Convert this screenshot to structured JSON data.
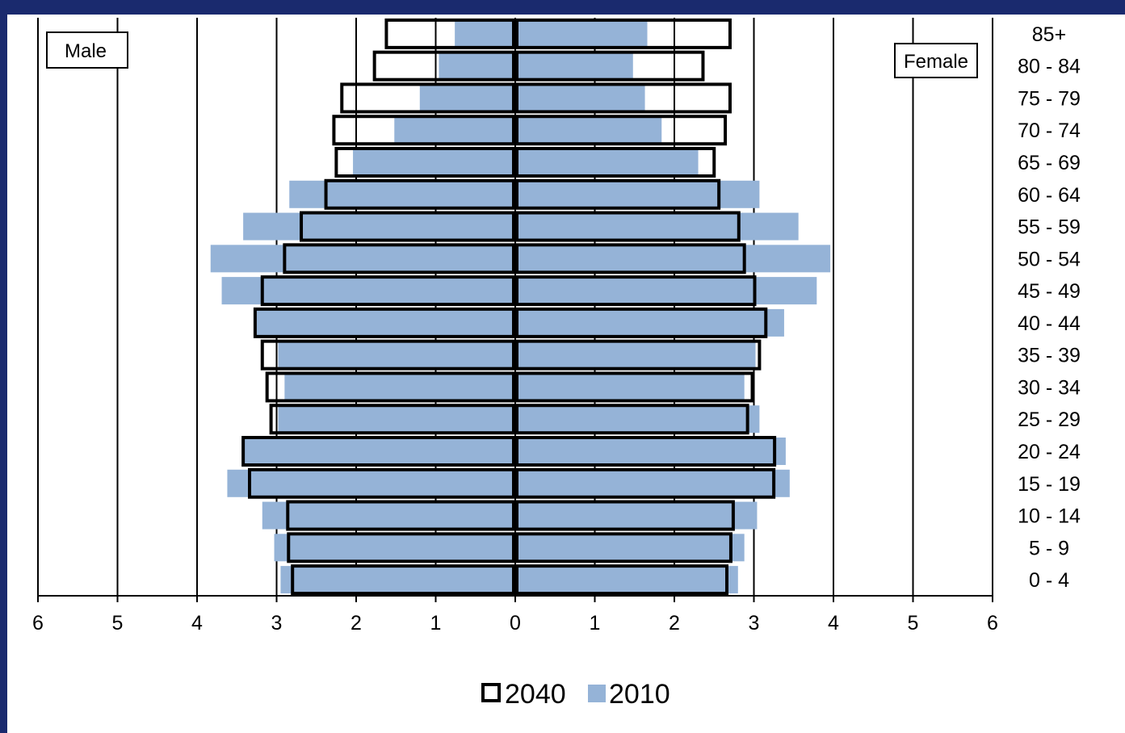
{
  "colors": {
    "frame": "#1a2a6e",
    "bar_2010": "#95b3d7",
    "outline_2040": "#000000",
    "background": "#ffffff"
  },
  "chart_data": {
    "type": "bar",
    "orientation": "horizontal-population-pyramid",
    "title": "",
    "categories": [
      "85+",
      "80 - 84",
      "75 - 79",
      "70 - 74",
      "65 - 69",
      "60 - 64",
      "55 - 59",
      "50 - 54",
      "45 - 49",
      "40 - 44",
      "35 - 39",
      "30 - 34",
      "25 - 29",
      "20 - 24",
      "15 - 19",
      "10 - 14",
      "5 - 9",
      "0 - 4"
    ],
    "side_labels": {
      "left": "Male",
      "right": "Female"
    },
    "x_ticks": [
      "6",
      "5",
      "4",
      "3",
      "2",
      "1",
      "0",
      "1",
      "2",
      "3",
      "4",
      "5",
      "6"
    ],
    "xlim": [
      -6,
      6
    ],
    "grid": "vertical",
    "legend_position": "bottom",
    "legend": [
      "2040",
      "2010"
    ],
    "series": [
      {
        "name": "2040",
        "style": "outline",
        "male": [
          1.62,
          1.77,
          2.18,
          2.28,
          2.25,
          2.38,
          2.69,
          2.9,
          3.18,
          3.27,
          3.18,
          3.12,
          3.07,
          3.42,
          3.34,
          2.86,
          2.85,
          2.8
        ],
        "female": [
          2.7,
          2.36,
          2.7,
          2.64,
          2.5,
          2.56,
          2.81,
          2.88,
          3.01,
          3.15,
          3.07,
          2.98,
          2.92,
          3.26,
          3.25,
          2.74,
          2.71,
          2.66
        ]
      },
      {
        "name": "2010",
        "style": "filled",
        "male": [
          0.76,
          0.96,
          1.2,
          1.52,
          2.04,
          2.84,
          3.42,
          3.83,
          3.69,
          3.25,
          2.98,
          2.9,
          2.98,
          3.44,
          3.62,
          3.18,
          3.03,
          2.95
        ],
        "female": [
          1.66,
          1.48,
          1.63,
          1.84,
          2.3,
          3.07,
          3.56,
          3.96,
          3.79,
          3.38,
          3.02,
          2.88,
          3.07,
          3.4,
          3.45,
          3.04,
          2.88,
          2.8
        ]
      }
    ]
  }
}
